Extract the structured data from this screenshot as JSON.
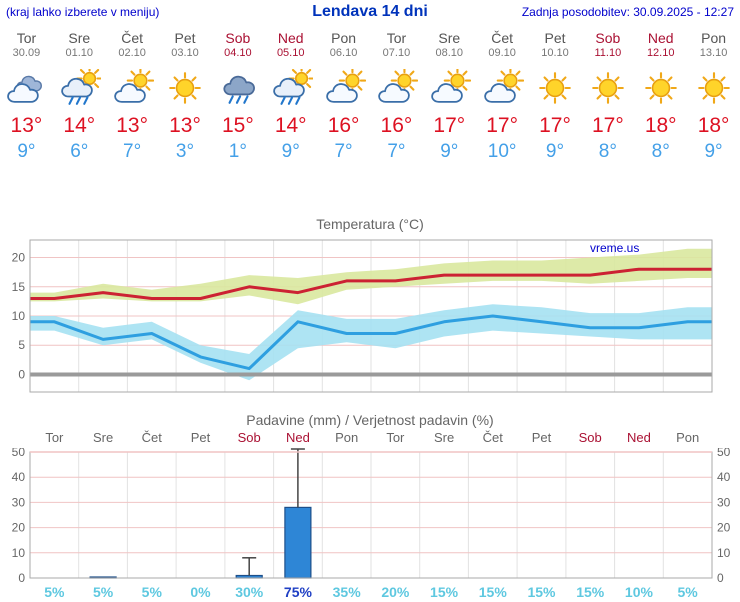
{
  "header": {
    "menu_note": "(kraj lahko izberete v meniju)",
    "title": "Lendava 14 dni",
    "last_updated": "Zadnja posodobitev: 30.09.2025 - 12:27"
  },
  "watermark": "vreme.us",
  "colors": {
    "accent_blue": "#0000cc",
    "weekday_text": "#555555",
    "weekend_text": "#aa1133",
    "temp_high": "#cc2233",
    "temp_low": "#2e9fe0",
    "band_max": "#d9e89e",
    "band_min": "#a5e1f2",
    "bar_fill": "#2e86d6",
    "bar_stroke": "#1d4f8a",
    "grid_pink": "#f0c4c4",
    "grid_gray": "#e2e2e2",
    "frame": "#aaaaaa",
    "zero_line": "#9a9a9a",
    "prob_text": "#5ec8e0",
    "prob_highlight": "#1f3fc4"
  },
  "days": [
    {
      "name": "Tor",
      "date": "30.09",
      "weekend": false,
      "icon": "cloudy",
      "high": "13°",
      "low": "9°"
    },
    {
      "name": "Sre",
      "date": "01.10",
      "weekend": false,
      "icon": "sun-rain",
      "high": "14°",
      "low": "6°"
    },
    {
      "name": "Čet",
      "date": "02.10",
      "weekend": false,
      "icon": "partly",
      "high": "13°",
      "low": "7°"
    },
    {
      "name": "Pet",
      "date": "03.10",
      "weekend": false,
      "icon": "sunny",
      "high": "13°",
      "low": "3°"
    },
    {
      "name": "Sob",
      "date": "04.10",
      "weekend": true,
      "icon": "rain",
      "high": "15°",
      "low": "1°"
    },
    {
      "name": "Ned",
      "date": "05.10",
      "weekend": true,
      "icon": "sun-rain",
      "high": "14°",
      "low": "9°"
    },
    {
      "name": "Pon",
      "date": "06.10",
      "weekend": false,
      "icon": "partly",
      "high": "16°",
      "low": "7°"
    },
    {
      "name": "Tor",
      "date": "07.10",
      "weekend": false,
      "icon": "partly",
      "high": "16°",
      "low": "7°"
    },
    {
      "name": "Sre",
      "date": "08.10",
      "weekend": false,
      "icon": "partly",
      "high": "17°",
      "low": "9°"
    },
    {
      "name": "Čet",
      "date": "09.10",
      "weekend": false,
      "icon": "partly",
      "high": "17°",
      "low": "10°"
    },
    {
      "name": "Pet",
      "date": "10.10",
      "weekend": false,
      "icon": "sunny",
      "high": "17°",
      "low": "9°"
    },
    {
      "name": "Sob",
      "date": "11.10",
      "weekend": true,
      "icon": "sunny",
      "high": "17°",
      "low": "8°"
    },
    {
      "name": "Ned",
      "date": "12.10",
      "weekend": true,
      "icon": "sunny",
      "high": "18°",
      "low": "8°"
    },
    {
      "name": "Pon",
      "date": "13.10",
      "weekend": false,
      "icon": "sunny",
      "high": "18°",
      "low": "9°"
    }
  ],
  "chart_data": [
    {
      "type": "line",
      "title": "Temperatura (°C)",
      "x": [
        "Tor",
        "Sre",
        "Čet",
        "Pet",
        "Sob",
        "Ned",
        "Pon",
        "Tor",
        "Sre",
        "Čet",
        "Pet",
        "Sob",
        "Ned",
        "Pon"
      ],
      "series": [
        {
          "name": "max_temp",
          "color": "#cc2233",
          "values": [
            13,
            14,
            13,
            13,
            15,
            14,
            16,
            16,
            17,
            17,
            17,
            17,
            18,
            18
          ]
        },
        {
          "name": "min_temp",
          "color": "#2e9fe0",
          "values": [
            9,
            6,
            7,
            3,
            1,
            9,
            7,
            7,
            9,
            10,
            9,
            8,
            8,
            9
          ]
        }
      ],
      "bands": [
        {
          "name": "max_range",
          "color": "#d9e89e",
          "upper": [
            14,
            15.5,
            14.5,
            15.5,
            17,
            16.5,
            17.5,
            18,
            19,
            19.5,
            19.5,
            20,
            20.5,
            21.5
          ],
          "lower": [
            12.5,
            13,
            12.5,
            12.5,
            13.5,
            12,
            14.5,
            15,
            15.5,
            16,
            16,
            15.5,
            16,
            16.5
          ]
        },
        {
          "name": "min_range",
          "color": "#a5e1f2",
          "upper": [
            10,
            8,
            9,
            5,
            3.5,
            11,
            9.5,
            9.5,
            11,
            12,
            11.5,
            10.5,
            10.5,
            11.5
          ],
          "lower": [
            7.5,
            5,
            6,
            2,
            -1,
            4.5,
            5.5,
            4.5,
            6.5,
            7.5,
            7,
            6.5,
            6,
            6
          ]
        }
      ],
      "ylim": [
        -3,
        23
      ],
      "yticks": [
        0,
        5,
        10,
        15,
        20
      ],
      "grid": true,
      "legend_position": "none"
    },
    {
      "type": "bar",
      "title": "Padavine (mm) / Verjetnost padavin (%)",
      "categories": [
        "Tor",
        "Sre",
        "Čet",
        "Pet",
        "Sob",
        "Ned",
        "Pon",
        "Tor",
        "Sre",
        "Čet",
        "Pet",
        "Sob",
        "Ned",
        "Pon"
      ],
      "values_mm": [
        0,
        0.4,
        0,
        0,
        1,
        28,
        0,
        0,
        0,
        0,
        0,
        0,
        0,
        0
      ],
      "whisker_max_mm": [
        0,
        0,
        0,
        0,
        8,
        52,
        0,
        0,
        0,
        0,
        0,
        0,
        0,
        0
      ],
      "probabilities": [
        "5%",
        "5%",
        "5%",
        "0%",
        "30%",
        "75%",
        "35%",
        "20%",
        "15%",
        "15%",
        "15%",
        "15%",
        "10%",
        "5%"
      ],
      "probability_highlight_index": 5,
      "ylim": [
        0,
        50
      ],
      "yticks": [
        0,
        10,
        20,
        30,
        40,
        50
      ],
      "grid": true,
      "legend_position": "none"
    }
  ]
}
